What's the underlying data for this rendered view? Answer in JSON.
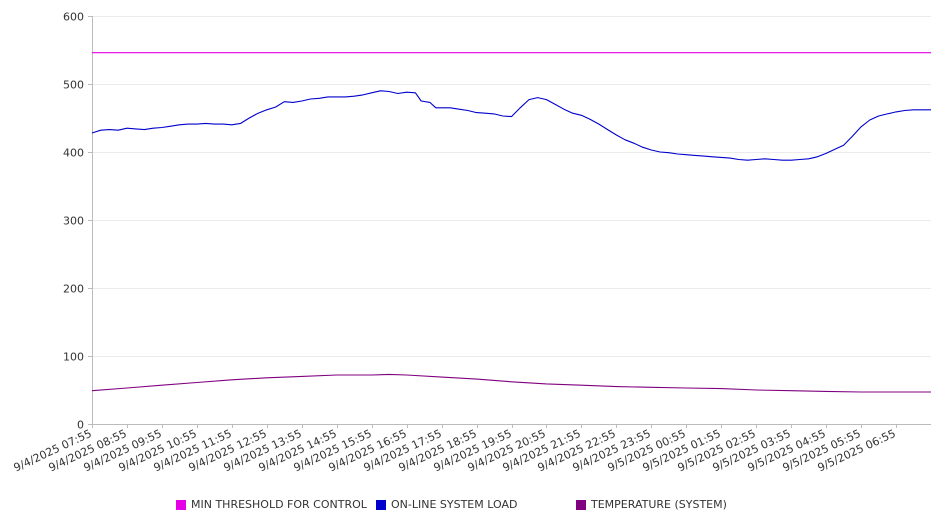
{
  "chart_data": {
    "type": "line",
    "title": "",
    "xlabel": "",
    "ylabel": "",
    "ylim": [
      0,
      600
    ],
    "y_ticks": [
      0,
      100,
      200,
      300,
      400,
      500,
      600
    ],
    "x_ticks": [
      "9/4/2025 07:55",
      "9/4/2025 08:55",
      "9/4/2025 09:55",
      "9/4/2025 10:55",
      "9/4/2025 11:55",
      "9/4/2025 12:55",
      "9/4/2025 13:55",
      "9/4/2025 14:55",
      "9/4/2025 15:55",
      "9/4/2025 16:55",
      "9/4/2025 17:55",
      "9/4/2025 18:55",
      "9/4/2025 19:55",
      "9/4/2025 20:55",
      "9/4/2025 21:55",
      "9/4/2025 22:55",
      "9/4/2025 23:55",
      "9/5/2025 00:55",
      "9/5/2025 01:55",
      "9/5/2025 02:55",
      "9/5/2025 03:55",
      "9/5/2025 04:55",
      "9/5/2025 05:55",
      "9/5/2025 06:55"
    ],
    "x_range": [
      "9/4/2025 07:55",
      "9/5/2025 07:55"
    ],
    "grid": true,
    "legend_position": "bottom",
    "series": [
      {
        "name": "MIN THRESHOLD FOR CONTROL",
        "color": "#e600e6",
        "points": [
          [
            "9/4/2025 07:55",
            546
          ],
          [
            "9/5/2025 07:55",
            546
          ]
        ]
      },
      {
        "name": "ON-LINE SYSTEM LOAD",
        "color": "#0000cc",
        "points": [
          [
            "9/4/2025 07:55",
            428
          ],
          [
            "9/4/2025 08:10",
            432
          ],
          [
            "9/4/2025 08:25",
            433
          ],
          [
            "9/4/2025 08:40",
            432
          ],
          [
            "9/4/2025 08:55",
            435
          ],
          [
            "9/4/2025 09:10",
            434
          ],
          [
            "9/4/2025 09:25",
            433
          ],
          [
            "9/4/2025 09:40",
            435
          ],
          [
            "9/4/2025 09:55",
            436
          ],
          [
            "9/4/2025 10:10",
            438
          ],
          [
            "9/4/2025 10:25",
            440
          ],
          [
            "9/4/2025 10:40",
            441
          ],
          [
            "9/4/2025 10:55",
            441
          ],
          [
            "9/4/2025 11:10",
            442
          ],
          [
            "9/4/2025 11:25",
            441
          ],
          [
            "9/4/2025 11:40",
            441
          ],
          [
            "9/4/2025 11:55",
            440
          ],
          [
            "9/4/2025 12:10",
            442
          ],
          [
            "9/4/2025 12:25",
            450
          ],
          [
            "9/4/2025 12:40",
            457
          ],
          [
            "9/4/2025 12:55",
            462
          ],
          [
            "9/4/2025 13:10",
            466
          ],
          [
            "9/4/2025 13:25",
            474
          ],
          [
            "9/4/2025 13:40",
            473
          ],
          [
            "9/4/2025 13:55",
            475
          ],
          [
            "9/4/2025 14:10",
            478
          ],
          [
            "9/4/2025 14:25",
            479
          ],
          [
            "9/4/2025 14:40",
            481
          ],
          [
            "9/4/2025 14:55",
            481
          ],
          [
            "9/4/2025 15:10",
            481
          ],
          [
            "9/4/2025 15:25",
            482
          ],
          [
            "9/4/2025 15:40",
            484
          ],
          [
            "9/4/2025 15:55",
            487
          ],
          [
            "9/4/2025 16:10",
            490
          ],
          [
            "9/4/2025 16:25",
            489
          ],
          [
            "9/4/2025 16:40",
            486
          ],
          [
            "9/4/2025 16:55",
            488
          ],
          [
            "9/4/2025 17:10",
            487
          ],
          [
            "9/4/2025 17:20",
            475
          ],
          [
            "9/4/2025 17:35",
            473
          ],
          [
            "9/4/2025 17:45",
            465
          ],
          [
            "9/4/2025 17:55",
            465
          ],
          [
            "9/4/2025 18:10",
            465
          ],
          [
            "9/4/2025 18:25",
            463
          ],
          [
            "9/4/2025 18:40",
            461
          ],
          [
            "9/4/2025 18:55",
            458
          ],
          [
            "9/4/2025 19:10",
            457
          ],
          [
            "9/4/2025 19:25",
            456
          ],
          [
            "9/4/2025 19:40",
            453
          ],
          [
            "9/4/2025 19:55",
            452
          ],
          [
            "9/4/2025 20:10",
            465
          ],
          [
            "9/4/2025 20:25",
            477
          ],
          [
            "9/4/2025 20:40",
            480
          ],
          [
            "9/4/2025 20:55",
            477
          ],
          [
            "9/4/2025 21:10",
            470
          ],
          [
            "9/4/2025 21:25",
            463
          ],
          [
            "9/4/2025 21:40",
            457
          ],
          [
            "9/4/2025 21:55",
            454
          ],
          [
            "9/4/2025 22:10",
            448
          ],
          [
            "9/4/2025 22:25",
            441
          ],
          [
            "9/4/2025 22:40",
            433
          ],
          [
            "9/4/2025 22:55",
            425
          ],
          [
            "9/4/2025 23:10",
            418
          ],
          [
            "9/4/2025 23:25",
            413
          ],
          [
            "9/4/2025 23:40",
            407
          ],
          [
            "9/4/2025 23:55",
            403
          ],
          [
            "9/5/2025 00:10",
            400
          ],
          [
            "9/5/2025 00:25",
            399
          ],
          [
            "9/5/2025 00:40",
            397
          ],
          [
            "9/5/2025 00:55",
            396
          ],
          [
            "9/5/2025 01:10",
            395
          ],
          [
            "9/5/2025 01:25",
            394
          ],
          [
            "9/5/2025 01:40",
            393
          ],
          [
            "9/5/2025 01:55",
            392
          ],
          [
            "9/5/2025 02:10",
            391
          ],
          [
            "9/5/2025 02:25",
            389
          ],
          [
            "9/5/2025 02:40",
            388
          ],
          [
            "9/5/2025 02:55",
            389
          ],
          [
            "9/5/2025 03:10",
            390
          ],
          [
            "9/5/2025 03:25",
            389
          ],
          [
            "9/5/2025 03:40",
            388
          ],
          [
            "9/5/2025 03:55",
            388
          ],
          [
            "9/5/2025 04:10",
            389
          ],
          [
            "9/5/2025 04:25",
            390
          ],
          [
            "9/5/2025 04:40",
            393
          ],
          [
            "9/5/2025 04:55",
            398
          ],
          [
            "9/5/2025 05:10",
            404
          ],
          [
            "9/5/2025 05:25",
            410
          ],
          [
            "9/5/2025 05:40",
            423
          ],
          [
            "9/5/2025 05:55",
            437
          ],
          [
            "9/5/2025 06:10",
            447
          ],
          [
            "9/5/2025 06:25",
            453
          ],
          [
            "9/5/2025 06:40",
            456
          ],
          [
            "9/5/2025 06:55",
            459
          ],
          [
            "9/5/2025 07:10",
            461
          ],
          [
            "9/5/2025 07:25",
            462
          ],
          [
            "9/5/2025 07:40",
            462
          ],
          [
            "9/5/2025 07:55",
            462
          ]
        ]
      },
      {
        "name": "TEMPERATURE (SYSTEM)",
        "color": "#800080",
        "points": [
          [
            "9/4/2025 07:55",
            49
          ],
          [
            "9/4/2025 08:55",
            53
          ],
          [
            "9/4/2025 09:55",
            57
          ],
          [
            "9/4/2025 10:55",
            61
          ],
          [
            "9/4/2025 11:55",
            65
          ],
          [
            "9/4/2025 12:55",
            68
          ],
          [
            "9/4/2025 13:55",
            70
          ],
          [
            "9/4/2025 14:55",
            72
          ],
          [
            "9/4/2025 15:55",
            72
          ],
          [
            "9/4/2025 16:25",
            73
          ],
          [
            "9/4/2025 16:55",
            72
          ],
          [
            "9/4/2025 17:55",
            69
          ],
          [
            "9/4/2025 18:55",
            66
          ],
          [
            "9/4/2025 19:55",
            62
          ],
          [
            "9/4/2025 20:55",
            59
          ],
          [
            "9/4/2025 21:55",
            57
          ],
          [
            "9/4/2025 22:55",
            55
          ],
          [
            "9/4/2025 23:55",
            54
          ],
          [
            "9/5/2025 00:55",
            53
          ],
          [
            "9/5/2025 01:55",
            52
          ],
          [
            "9/5/2025 02:55",
            50
          ],
          [
            "9/5/2025 03:55",
            49
          ],
          [
            "9/5/2025 04:55",
            48
          ],
          [
            "9/5/2025 05:55",
            47
          ],
          [
            "9/5/2025 06:55",
            47
          ],
          [
            "9/5/2025 07:55",
            47
          ]
        ]
      }
    ]
  }
}
